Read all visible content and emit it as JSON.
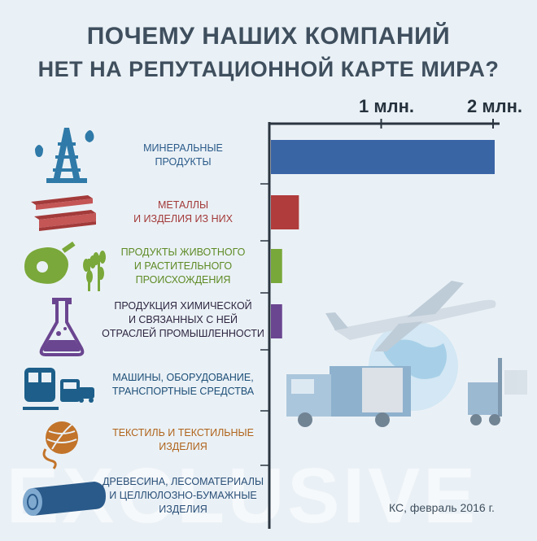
{
  "title_line1": "ПОЧЕМУ НАШИХ КОМПАНИЙ",
  "title_line2": "НЕТ НА РЕПУТАЦИОННОЙ КАРТЕ МИРА?",
  "source": "КС, февраль 2016 г.",
  "watermark": "EXCLUSIVE",
  "chart_data": {
    "type": "bar",
    "orientation": "horizontal",
    "axis_ticks": [
      {
        "value": 1000000,
        "label": "1 млн."
      },
      {
        "value": 2000000,
        "label": "2 млн."
      }
    ],
    "xlim": [
      0,
      2000000
    ],
    "grid": false,
    "legend": "none",
    "categories": [
      {
        "label": "МИНЕРАЛЬНЫЕ ПРОДУКТЫ",
        "label_lines": [
          "МИНЕРАЛЬНЫЕ",
          "ПРОДУКТЫ"
        ],
        "value": 2000000,
        "color": "#3a65a5",
        "icon": "oil-rig-icon"
      },
      {
        "label": "МЕТАЛЛЫ И ИЗДЕЛИЯ ИЗ НИХ",
        "label_lines": [
          "МЕТАЛЛЫ",
          "И ИЗДЕЛИЯ ИЗ НИХ"
        ],
        "value": 250000,
        "color": "#b03c3c",
        "icon": "steel-beam-icon"
      },
      {
        "label": "ПРОДУКТЫ ЖИВОТНОГО И РАСТИТЕЛЬНОГО ПРОИСХОЖДЕНИЯ",
        "label_lines": [
          "ПРОДУКТЫ ЖИВОТНОГО",
          "И РАСТИТЕЛЬНОГО",
          "ПРОИСХОЖДЕНИЯ"
        ],
        "value": 100000,
        "color": "#79a83a",
        "icon": "ham-wheat-icon"
      },
      {
        "label": "ПРОДУКЦИЯ ХИМИЧЕСКОЙ И СВЯЗАННЫХ С НЕЙ ОТРАСЛЕЙ ПРОМЫШЛЕННОСТИ",
        "label_lines": [
          "ПРОДУКЦИЯ ХИМИЧЕСКОЙ",
          "И СВЯЗАННЫХ С НЕЙ",
          "ОТРАСЛЕЙ ПРОМЫШЛЕННОСТИ"
        ],
        "value": 100000,
        "color": "#6a4590",
        "icon": "flask-icon"
      },
      {
        "label": "МАШИНЫ, ОБОРУДОВАНИЕ, ТРАНСПОРТНЫЕ СРЕДСТВА",
        "label_lines": [
          "МАШИНЫ, ОБОРУДОВАНИЕ,",
          "ТРАНСПОРТНЫЕ СРЕДСТВА"
        ],
        "value": null,
        "color": "#1d5f8a",
        "icon": "transport-icon"
      },
      {
        "label": "ТЕКСТИЛЬ И ТЕКСТИЛЬНЫЕ ИЗДЕЛИЯ",
        "label_lines": [
          "ТЕКСТИЛЬ И ТЕКСТИЛЬНЫЕ",
          "ИЗДЕЛИЯ"
        ],
        "value": null,
        "color": "#c2742a",
        "icon": "yarn-ball-icon"
      },
      {
        "label": "ДРЕВЕСИНА, ЛЕСОМАТЕРИАЛЫ И ЦЕЛЛЮЛОЗНО-БУМАЖНЫЕ ИЗДЕЛИЯ",
        "label_lines": [
          "ДРЕВЕСИНА, ЛЕСОМАТЕРИАЛЫ",
          "И ЦЕЛЛЮЛОЗНО-БУМАЖНЫЕ",
          "ИЗДЕЛИЯ"
        ],
        "value": null,
        "color": "#2a5a8a",
        "icon": "log-icon"
      }
    ]
  }
}
